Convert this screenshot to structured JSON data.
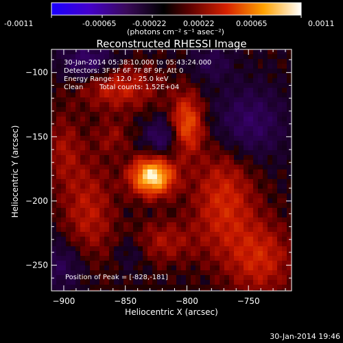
{
  "colorbar": {
    "ticks": [
      "-0.0011",
      "-0.00065",
      "-0.00022",
      "0.00022",
      "0.00065",
      "0.0011"
    ],
    "unit_label": "(photons cm⁻² s⁻¹ asec⁻²)",
    "colors": [
      "#0000ff",
      "#4b0082",
      "#000000",
      "#8b0000",
      "#ff4500",
      "#ffd700",
      "#ffffff"
    ]
  },
  "chart_data": {
    "type": "heatmap",
    "title": "Reconstructed RHESSI Image",
    "xlabel": "Heliocentric X (arcsec)",
    "ylabel": "Heliocentric Y (arcsec)",
    "xlim": [
      -910,
      -715
    ],
    "ylim": [
      -270,
      -82
    ],
    "x_ticks": [
      -900,
      -850,
      -800,
      -750
    ],
    "y_ticks": [
      -100,
      -150,
      -200,
      -250
    ],
    "peak": {
      "x": -828,
      "y": -181
    },
    "sources": [
      {
        "x": -828,
        "y": -181,
        "sx": 12,
        "sy": 10,
        "amp": 1.0
      },
      {
        "x": -800,
        "y": -140,
        "sx": 9,
        "sy": 16,
        "amp": 0.55
      },
      {
        "x": -855,
        "y": -112,
        "sx": 22,
        "sy": 12,
        "amp": 0.35
      },
      {
        "x": -880,
        "y": -210,
        "sx": 15,
        "sy": 30,
        "amp": 0.3
      },
      {
        "x": -770,
        "y": -200,
        "sx": 18,
        "sy": 30,
        "amp": 0.38
      },
      {
        "x": -740,
        "y": -245,
        "sx": 18,
        "sy": 20,
        "amp": 0.35
      },
      {
        "x": -820,
        "y": -232,
        "sx": 18,
        "sy": 12,
        "amp": 0.25
      },
      {
        "x": -900,
        "y": -160,
        "sx": 10,
        "sy": 20,
        "amp": 0.22
      },
      {
        "x": -860,
        "y": -150,
        "sx": 10,
        "sy": 10,
        "amp": 0.18
      }
    ],
    "negatives": [
      {
        "x": -820,
        "y": -150,
        "sx": 10,
        "sy": 10,
        "amp": 0.3
      },
      {
        "x": -880,
        "y": -92,
        "sx": 15,
        "sy": 10,
        "amp": 0.35
      },
      {
        "x": -750,
        "y": -140,
        "sx": 20,
        "sy": 20,
        "amp": 0.3
      },
      {
        "x": -900,
        "y": -250,
        "sx": 15,
        "sy": 15,
        "amp": 0.25
      },
      {
        "x": -780,
        "y": -92,
        "sx": 12,
        "sy": 10,
        "amp": 0.2
      },
      {
        "x": -845,
        "y": -240,
        "sx": 10,
        "sy": 10,
        "amp": 0.15
      }
    ]
  },
  "info": {
    "line1": "30-Jan-2014 05:38:10.000 to 05:43:24.000",
    "line2": "Detectors: 3F 5F 6F 7F 8F 9F, Att 0",
    "line3": "Energy Range: 12.0 - 25.0 keV",
    "line4_left": "Clean",
    "line4_right": "Total counts: 1.52E+04",
    "peak_label": "Position of Peak = [-828,-181]"
  },
  "timestamp": "30-Jan-2014 19:46"
}
